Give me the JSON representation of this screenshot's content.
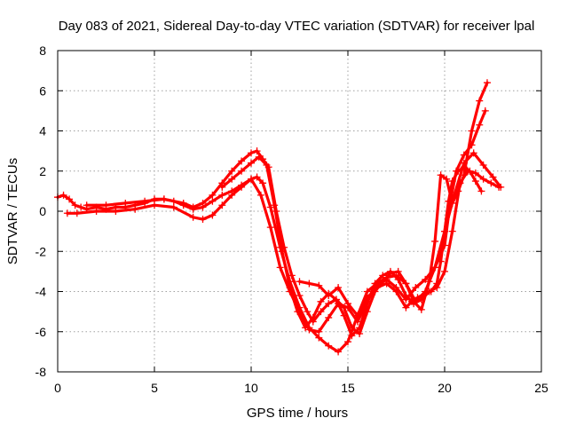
{
  "chart_data": {
    "type": "scatter",
    "title": "Day 083 of 2021, Sidereal Day-to-day VTEC variation (SDTVAR) for receiver lpal",
    "xlabel": "GPS time / hours",
    "ylabel": "SDTVAR / TECUs",
    "xlim": [
      0,
      25
    ],
    "ylim": [
      -8,
      8
    ],
    "xticks": [
      0,
      5,
      10,
      15,
      20,
      25
    ],
    "yticks": [
      -8,
      -6,
      -4,
      -2,
      0,
      2,
      4,
      6,
      8
    ],
    "grid": true,
    "marker": "+",
    "color": "#ff0000",
    "series": [
      {
        "x": [
          0.0,
          0.3,
          0.6,
          0.9,
          1.2,
          1.5,
          2.0,
          2.5,
          3.0,
          3.5,
          4.0,
          4.5,
          5.0,
          5.5,
          6.0,
          6.5,
          7.0,
          7.5,
          8.0,
          8.5,
          9.0,
          9.5,
          10.0,
          10.3,
          10.6,
          11.0,
          11.5,
          12.0,
          12.5,
          13.0,
          13.5,
          14.0,
          14.5,
          15.0,
          15.5,
          16.0,
          16.5,
          17.0,
          17.5,
          18.0,
          18.3,
          18.6,
          19.0,
          19.3,
          19.6,
          19.8,
          20.0,
          20.2,
          20.4,
          20.7,
          21.0,
          21.3,
          21.6,
          21.9
        ],
        "y": [
          0.7,
          0.8,
          0.6,
          0.3,
          0.2,
          0.1,
          0.2,
          0.1,
          0.2,
          0.2,
          0.3,
          0.4,
          0.6,
          0.6,
          0.5,
          0.3,
          0.1,
          0.2,
          0.5,
          0.8,
          1.0,
          1.3,
          1.6,
          1.7,
          1.4,
          0.2,
          -1.8,
          -3.5,
          -4.8,
          -5.8,
          -6.3,
          -6.7,
          -7.0,
          -6.5,
          -5.2,
          -4.3,
          -3.8,
          -3.6,
          -4.0,
          -4.8,
          -4.5,
          -4.3,
          -4.1,
          -4.0,
          -3.6,
          -2.5,
          -1.0,
          0.5,
          1.5,
          2.0,
          2.2,
          2.0,
          1.5,
          1.0
        ]
      },
      {
        "x": [
          0.5,
          1.0,
          2.0,
          3.0,
          4.0,
          5.0,
          6.0,
          7.0,
          7.5,
          8.0,
          8.5,
          9.0,
          9.5,
          10.0,
          10.5,
          11.0,
          11.5,
          12.0,
          12.5,
          13.0,
          13.5,
          14.0,
          14.5,
          15.0,
          15.5,
          16.0,
          16.5,
          17.0,
          17.5,
          18.0,
          18.5,
          19.0,
          19.5,
          20.0,
          20.3,
          20.6,
          21.0,
          21.4,
          21.8,
          22.1
        ],
        "y": [
          -0.1,
          -0.1,
          0.0,
          0.0,
          0.1,
          0.3,
          0.2,
          -0.3,
          -0.4,
          -0.2,
          0.3,
          0.8,
          1.2,
          1.6,
          0.8,
          -0.8,
          -2.8,
          -4.0,
          -5.0,
          -5.9,
          -6.0,
          -5.3,
          -4.6,
          -4.8,
          -5.5,
          -4.5,
          -3.7,
          -3.4,
          -3.8,
          -4.4,
          -3.8,
          -3.4,
          -2.8,
          -1.7,
          0.5,
          2.0,
          2.8,
          3.3,
          4.3,
          5.0
        ]
      },
      {
        "x": [
          1.5,
          2.5,
          3.5,
          4.5,
          5.5,
          6.5,
          7.0,
          7.5,
          8.0,
          8.5,
          9.0,
          9.5,
          10.0,
          10.3,
          10.6,
          10.9,
          11.3,
          11.7,
          12.1,
          12.5,
          12.9,
          13.2,
          13.6,
          14.0,
          14.4,
          14.8,
          15.2,
          15.6,
          16.0,
          16.4,
          16.8,
          17.2,
          17.6,
          18.0,
          18.4,
          18.8,
          19.2,
          19.5,
          19.8,
          20.1,
          20.4,
          20.7,
          21.0,
          21.4,
          21.8,
          22.2
        ],
        "y": [
          0.3,
          0.3,
          0.4,
          0.5,
          0.6,
          0.4,
          0.2,
          0.4,
          0.8,
          1.4,
          2.0,
          2.5,
          2.9,
          3.0,
          2.6,
          2.2,
          0.0,
          -1.8,
          -3.2,
          -4.2,
          -5.0,
          -5.5,
          -5.0,
          -4.6,
          -4.4,
          -4.8,
          -5.8,
          -6.1,
          -5.0,
          -4.0,
          -3.5,
          -3.1,
          -3.0,
          -3.6,
          -4.5,
          -4.9,
          -3.5,
          -1.5,
          1.8,
          1.6,
          0.4,
          1.0,
          1.8,
          4.0,
          5.5,
          6.4
        ]
      },
      {
        "x": [
          8.5,
          9.0,
          9.5,
          10.0,
          10.4,
          10.8,
          11.2,
          11.6,
          12.0,
          12.4,
          12.8,
          13.2,
          13.6,
          14.0,
          14.4,
          14.8,
          15.2,
          15.6,
          16.0,
          16.4,
          16.8,
          17.2,
          17.6,
          18.0,
          18.4,
          18.8,
          19.2,
          19.6,
          20.0,
          20.4,
          20.8,
          21.2,
          21.6,
          22.0,
          22.4,
          22.8
        ],
        "y": [
          1.2,
          1.6,
          2.0,
          2.4,
          2.7,
          2.3,
          0.3,
          -2.0,
          -3.8,
          -5.0,
          -5.8,
          -5.3,
          -4.5,
          -4.1,
          -4.4,
          -5.2,
          -6.2,
          -5.8,
          -4.6,
          -3.6,
          -3.2,
          -3.0,
          -3.4,
          -4.2,
          -4.6,
          -4.4,
          -4.0,
          -3.8,
          -3.0,
          -1.0,
          1.4,
          2.0,
          1.9,
          1.6,
          1.4,
          1.2
        ]
      },
      {
        "x": [
          12.5,
          13.0,
          13.5,
          14.0,
          14.5,
          15.0,
          15.5,
          16.0,
          16.5,
          17.0,
          17.5,
          18.0,
          18.5,
          19.0,
          19.5,
          20.0,
          20.5,
          21.0,
          21.5,
          22.0,
          22.5,
          22.9
        ],
        "y": [
          -3.5,
          -3.6,
          -3.7,
          -4.2,
          -3.8,
          -4.6,
          -5.2,
          -4.0,
          -3.6,
          -3.3,
          -3.2,
          -3.6,
          -4.5,
          -4.0,
          -2.8,
          -1.0,
          0.8,
          2.4,
          2.9,
          2.3,
          1.7,
          1.2
        ]
      }
    ]
  }
}
